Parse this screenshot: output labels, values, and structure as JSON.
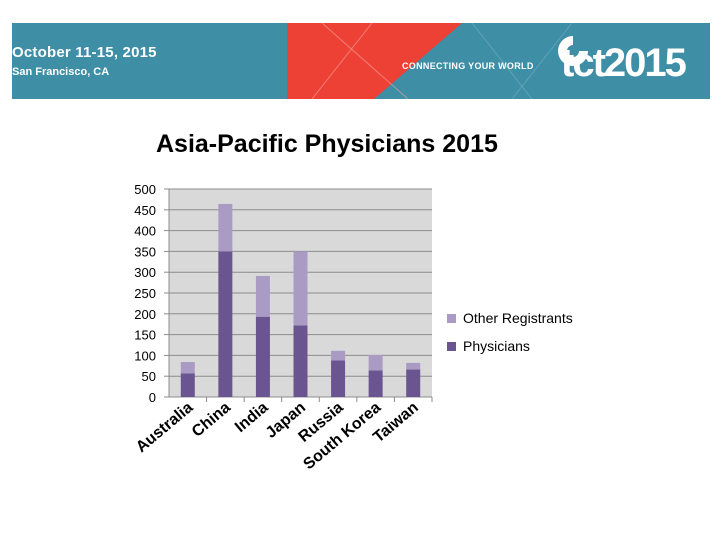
{
  "banner": {
    "date": "October 11-15, 2015",
    "location": "San Francisco, CA",
    "tagline": "CONNECTING YOUR WORLD",
    "brand": "tct2015",
    "colors": {
      "teal": "#3e8ea6",
      "red": "#ee4136",
      "icon": "swirl-logo-icon"
    }
  },
  "chart_data": {
    "type": "bar",
    "stacked": true,
    "title": "Asia-Pacific Physicians 2015",
    "categories": [
      "Australia",
      "China",
      "India",
      "Japan",
      "Russia",
      "South Korea",
      "Taiwan"
    ],
    "series": [
      {
        "name": "Physicians",
        "color": "#6b5591",
        "values": [
          57,
          350,
          193,
          172,
          88,
          64,
          66
        ]
      },
      {
        "name": "Other Registrants",
        "color": "#a99bc3",
        "values": [
          27,
          114,
          98,
          178,
          23,
          37,
          16
        ]
      }
    ],
    "yticks": [
      "0",
      "50",
      "100",
      "150",
      "200",
      "250",
      "300",
      "350",
      "400",
      "450",
      "500"
    ],
    "ylim": [
      0,
      500
    ],
    "grid": true,
    "legend": "right"
  }
}
